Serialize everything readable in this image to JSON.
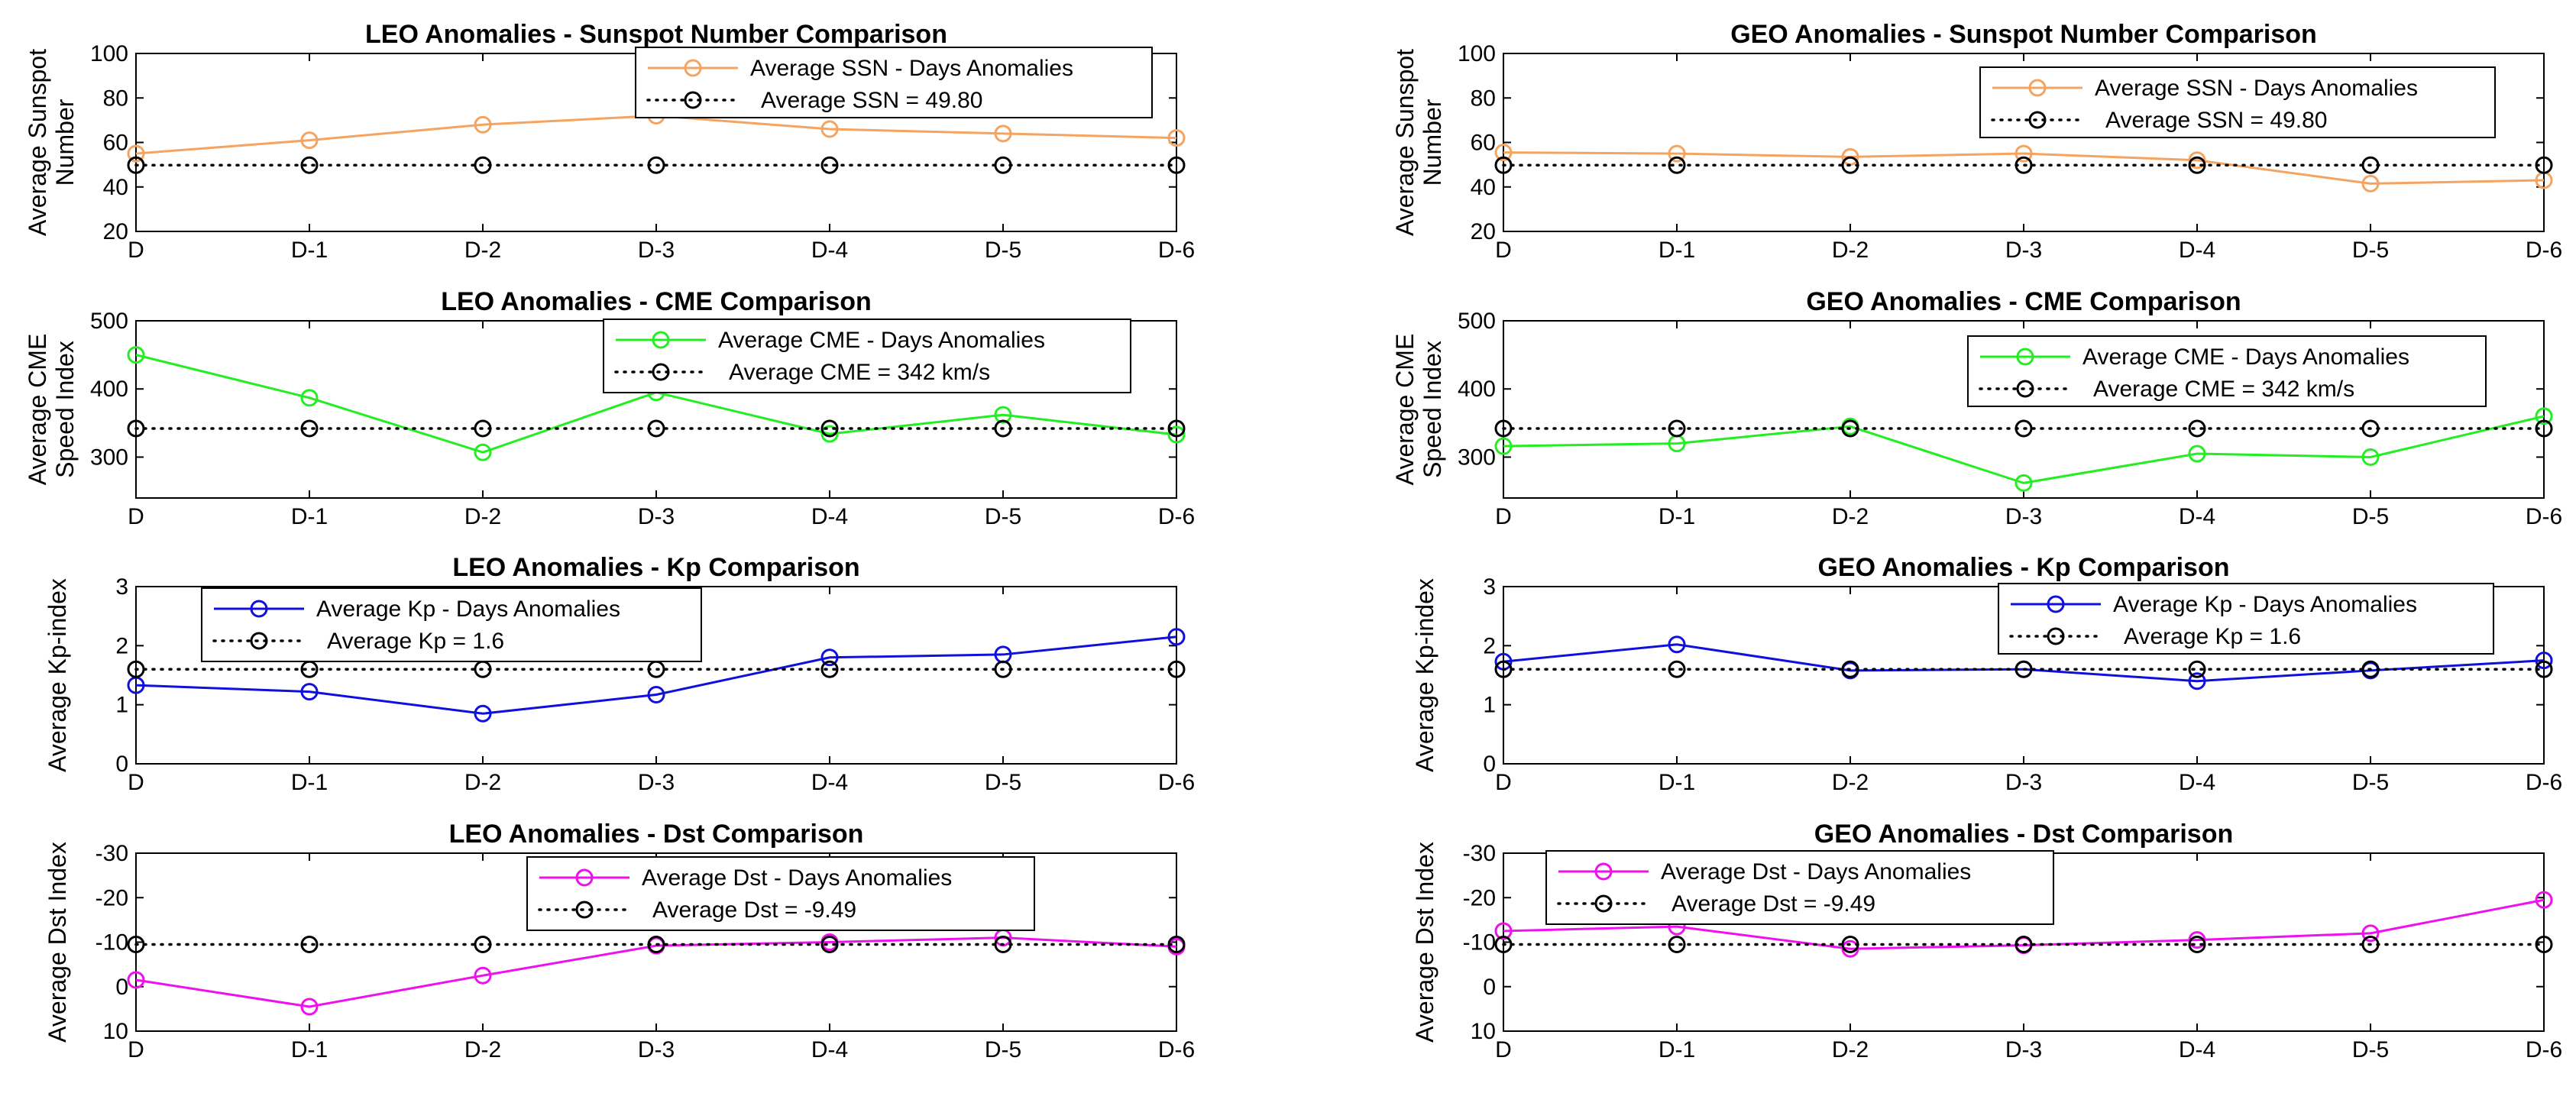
{
  "chart_data": [
    {
      "type": "line",
      "title": "LEO Anomalies - Sunspot Number Comparison",
      "ylabel": [
        "Average Sunspot",
        "Number"
      ],
      "categories": [
        "D",
        "D-1",
        "D-2",
        "D-3",
        "D-4",
        "D-5",
        "D-6"
      ],
      "ylim": [
        20,
        100
      ],
      "yticks": [
        20,
        40,
        60,
        80,
        100
      ],
      "reverse_y": false,
      "legend_position": "top-right",
      "series": [
        {
          "name": "Average SSN - Days Anomalies",
          "color": "#F4A460",
          "style": "solid",
          "values": [
            55,
            61,
            68,
            72,
            66,
            64,
            62
          ]
        },
        {
          "name": "Average SSN = 49.80",
          "color": "#000000",
          "style": "dotted",
          "values": [
            49.8,
            49.8,
            49.8,
            49.8,
            49.8,
            49.8,
            49.8
          ]
        }
      ]
    },
    {
      "type": "line",
      "title": "GEO Anomalies - Sunspot Number Comparison",
      "ylabel": [
        "Average Sunspot",
        "Number"
      ],
      "categories": [
        "D",
        "D-1",
        "D-2",
        "D-3",
        "D-4",
        "D-5",
        "D-6"
      ],
      "ylim": [
        20,
        100
      ],
      "yticks": [
        20,
        40,
        60,
        80,
        100
      ],
      "reverse_y": false,
      "legend_position": "top-right",
      "series": [
        {
          "name": "Average SSN - Days Anomalies",
          "color": "#F4A460",
          "style": "solid",
          "values": [
            55.5,
            55,
            53.5,
            55,
            52,
            41.5,
            43
          ]
        },
        {
          "name": "Average SSN = 49.80",
          "color": "#000000",
          "style": "dotted",
          "values": [
            49.8,
            49.8,
            49.8,
            49.8,
            49.8,
            49.8,
            49.8
          ]
        }
      ]
    },
    {
      "type": "line",
      "title": "LEO Anomalies - CME Comparison",
      "ylabel": [
        "Average CME",
        "Speed Index"
      ],
      "categories": [
        "D",
        "D-1",
        "D-2",
        "D-3",
        "D-4",
        "D-5",
        "D-6"
      ],
      "ylim": [
        240,
        500
      ],
      "yticks": [
        300,
        400,
        500
      ],
      "reverse_y": false,
      "legend_position": "top-right",
      "series": [
        {
          "name": "Average CME  - Days Anomalies",
          "color": "#22EE22",
          "style": "solid",
          "values": [
            450,
            387,
            307,
            395,
            334,
            362,
            333
          ]
        },
        {
          "name": "Average CME  = 342 km/s",
          "color": "#000000",
          "style": "dotted",
          "values": [
            342,
            342,
            342,
            342,
            342,
            342,
            342
          ]
        }
      ]
    },
    {
      "type": "line",
      "title": "GEO Anomalies - CME Comparison",
      "ylabel": [
        "Average CME",
        "Speed Index"
      ],
      "categories": [
        "D",
        "D-1",
        "D-2",
        "D-3",
        "D-4",
        "D-5",
        "D-6"
      ],
      "ylim": [
        240,
        500
      ],
      "yticks": [
        300,
        400,
        500
      ],
      "reverse_y": false,
      "legend_position": "top-right",
      "series": [
        {
          "name": "Average CME - Days Anomalies",
          "color": "#22EE22",
          "style": "solid",
          "values": [
            316,
            320,
            345,
            262,
            305,
            300,
            360
          ]
        },
        {
          "name": "Average CME = 342 km/s",
          "color": "#000000",
          "style": "dotted",
          "values": [
            342,
            342,
            342,
            342,
            342,
            342,
            342
          ]
        }
      ]
    },
    {
      "type": "line",
      "title": "LEO Anomalies - Kp Comparison",
      "ylabel": [
        "Average Kp-index"
      ],
      "categories": [
        "D",
        "D-1",
        "D-2",
        "D-3",
        "D-4",
        "D-5",
        "D-6"
      ],
      "ylim": [
        0,
        3
      ],
      "yticks": [
        0,
        1,
        2,
        3
      ],
      "reverse_y": false,
      "legend_position": "top-left",
      "series": [
        {
          "name": "Average Kp - Days Anomalies",
          "color": "#1010DD",
          "style": "solid",
          "values": [
            1.33,
            1.22,
            0.85,
            1.17,
            1.8,
            1.85,
            2.15
          ]
        },
        {
          "name": "Average Kp = 1.6",
          "color": "#000000",
          "style": "dotted",
          "values": [
            1.6,
            1.6,
            1.6,
            1.6,
            1.6,
            1.6,
            1.6
          ]
        }
      ]
    },
    {
      "type": "line",
      "title": "GEO Anomalies - Kp Comparison",
      "ylabel": [
        "Average Kp-index"
      ],
      "categories": [
        "D",
        "D-1",
        "D-2",
        "D-3",
        "D-4",
        "D-5",
        "D-6"
      ],
      "ylim": [
        0,
        3
      ],
      "yticks": [
        0,
        1,
        2,
        3
      ],
      "reverse_y": false,
      "legend_position": "top-right",
      "series": [
        {
          "name": "Average Kp - Days Anomalies",
          "color": "#1010DD",
          "style": "solid",
          "values": [
            1.73,
            2.02,
            1.58,
            1.6,
            1.4,
            1.58,
            1.75
          ]
        },
        {
          "name": "Average Kp = 1.6",
          "color": "#000000",
          "style": "dotted",
          "values": [
            1.6,
            1.6,
            1.6,
            1.6,
            1.6,
            1.6,
            1.6
          ]
        }
      ]
    },
    {
      "type": "line",
      "title": "LEO Anomalies - Dst Comparison",
      "ylabel": [
        "Average Dst Index"
      ],
      "categories": [
        "D",
        "D-1",
        "D-2",
        "D-3",
        "D-4",
        "D-5",
        "D-6"
      ],
      "ylim": [
        -30,
        10
      ],
      "yticks": [
        -30,
        -20,
        -10,
        0,
        10
      ],
      "reverse_y": true,
      "legend_position": "top-right",
      "series": [
        {
          "name": "Average Dst - Days Anomalies",
          "color": "#EE11EE",
          "style": "solid",
          "values": [
            -1.5,
            4.5,
            -2.5,
            -9.2,
            -10.0,
            -11.0,
            -9.0
          ]
        },
        {
          "name": "Average Dst = -9.49",
          "color": "#000000",
          "style": "dotted",
          "values": [
            -9.49,
            -9.49,
            -9.49,
            -9.49,
            -9.49,
            -9.49,
            -9.49
          ]
        }
      ]
    },
    {
      "type": "line",
      "title": "GEO Anomalies - Dst Comparison",
      "ylabel": [
        "Average Dst Index"
      ],
      "categories": [
        "D",
        "D-1",
        "D-2",
        "D-3",
        "D-4",
        "D-5",
        "D-6"
      ],
      "ylim": [
        -30,
        10
      ],
      "yticks": [
        -30,
        -20,
        -10,
        0,
        10
      ],
      "reverse_y": true,
      "legend_position": "top-left",
      "series": [
        {
          "name": "Average Dst - Days Anomalies",
          "color": "#EE11EE",
          "style": "solid",
          "values": [
            -12.5,
            -13.5,
            -8.5,
            -9.3,
            -10.5,
            -12.0,
            -19.5
          ]
        },
        {
          "name": "Average Dst = -9.49",
          "color": "#000000",
          "style": "dotted",
          "values": [
            -9.49,
            -9.49,
            -9.49,
            -9.49,
            -9.49,
            -9.49,
            -9.49
          ]
        }
      ]
    }
  ]
}
